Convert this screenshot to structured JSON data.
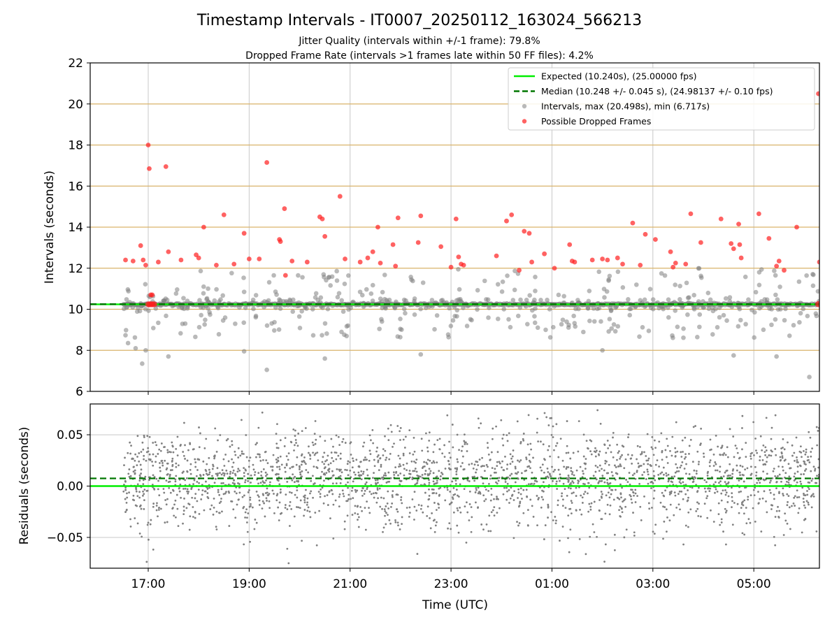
{
  "chart_data": [
    {
      "type": "scatter",
      "panel": "top",
      "title": "Timestamp Intervals - IT0007_20250112_163024_566213",
      "subtitle_lines": [
        "Jitter Quality (intervals within +/-1 frame): 79.8%",
        "Dropped Frame Rate (intervals >1 frames late within 50 FF files): 4.2%"
      ],
      "ylabel": "Intervals (seconds)",
      "xlabel": "",
      "xlim": [
        15.85,
        30.3
      ],
      "ylim": [
        6,
        22
      ],
      "yticks": [
        6,
        8,
        10,
        12,
        14,
        16,
        18,
        20,
        22
      ],
      "grid": true,
      "gold_gridlines": [
        8,
        10,
        12,
        14,
        16,
        18,
        20
      ],
      "legend_position": "upper right",
      "legend": [
        {
          "label": "Expected (10.240s), (25.00000 fps)",
          "kind": "solid-line",
          "color": "#00ee00"
        },
        {
          "label": "Median (10.248 +/- 0.045 s), (24.98137 +/- 0.10 fps)",
          "kind": "dashed-line",
          "color": "#007700"
        },
        {
          "label": "Intervals, max (20.498s), min (6.717s)",
          "kind": "marker",
          "color": "#808080"
        },
        {
          "label": "Possible Dropped Frames",
          "kind": "marker",
          "color": "#ff2020"
        }
      ],
      "expected_interval": 10.24,
      "median_interval": 10.248,
      "time_range_hours": [
        16.51,
        30.3
      ],
      "dense_band": {
        "y": 10.24,
        "description": "continuous band of intervals at expected value"
      },
      "dropped_frame_points": [
        [
          16.55,
          12.4
        ],
        [
          16.7,
          12.35
        ],
        [
          16.85,
          13.1
        ],
        [
          16.9,
          12.4
        ],
        [
          16.95,
          12.15
        ],
        [
          17.0,
          18.0
        ],
        [
          17.02,
          16.85
        ],
        [
          17.05,
          10.7
        ],
        [
          17.08,
          10.7
        ],
        [
          17.2,
          12.3
        ],
        [
          17.35,
          16.95
        ],
        [
          17.4,
          12.8
        ],
        [
          17.65,
          12.4
        ],
        [
          17.95,
          12.65
        ],
        [
          18.0,
          12.5
        ],
        [
          18.1,
          14.0
        ],
        [
          18.35,
          12.15
        ],
        [
          18.5,
          14.6
        ],
        [
          18.7,
          12.2
        ],
        [
          18.9,
          13.7
        ],
        [
          19.0,
          12.45
        ],
        [
          19.2,
          12.45
        ],
        [
          19.35,
          17.15
        ],
        [
          19.6,
          13.4
        ],
        [
          19.62,
          13.3
        ],
        [
          19.7,
          14.9
        ],
        [
          19.72,
          11.65
        ],
        [
          19.85,
          12.35
        ],
        [
          20.15,
          12.3
        ],
        [
          20.4,
          14.5
        ],
        [
          20.45,
          14.4
        ],
        [
          20.5,
          13.55
        ],
        [
          20.8,
          15.5
        ],
        [
          20.9,
          12.45
        ],
        [
          21.2,
          12.3
        ],
        [
          21.35,
          12.5
        ],
        [
          21.45,
          12.8
        ],
        [
          21.55,
          14.0
        ],
        [
          21.6,
          12.25
        ],
        [
          21.85,
          13.15
        ],
        [
          21.9,
          12.1
        ],
        [
          21.95,
          14.45
        ],
        [
          22.35,
          13.25
        ],
        [
          22.4,
          14.55
        ],
        [
          22.8,
          13.05
        ],
        [
          23.0,
          12.05
        ],
        [
          23.1,
          14.4
        ],
        [
          23.15,
          12.55
        ],
        [
          23.2,
          12.2
        ],
        [
          23.25,
          12.15
        ],
        [
          23.9,
          12.6
        ],
        [
          24.1,
          14.3
        ],
        [
          24.2,
          14.6
        ],
        [
          24.35,
          11.9
        ],
        [
          24.45,
          13.8
        ],
        [
          24.55,
          13.7
        ],
        [
          24.6,
          12.3
        ],
        [
          24.85,
          12.7
        ],
        [
          25.05,
          12.0
        ],
        [
          25.35,
          13.15
        ],
        [
          25.4,
          12.35
        ],
        [
          25.45,
          12.3
        ],
        [
          25.8,
          12.4
        ],
        [
          26.0,
          12.45
        ],
        [
          26.1,
          12.4
        ],
        [
          26.3,
          12.5
        ],
        [
          26.4,
          12.2
        ],
        [
          26.6,
          14.2
        ],
        [
          26.75,
          12.15
        ],
        [
          26.85,
          13.65
        ],
        [
          27.05,
          13.4
        ],
        [
          27.35,
          12.8
        ],
        [
          27.4,
          12.05
        ],
        [
          27.45,
          12.25
        ],
        [
          27.65,
          12.2
        ],
        [
          27.75,
          14.65
        ],
        [
          27.95,
          13.25
        ],
        [
          28.35,
          14.4
        ],
        [
          28.55,
          13.2
        ],
        [
          28.6,
          12.95
        ],
        [
          28.7,
          14.15
        ],
        [
          28.72,
          13.15
        ],
        [
          28.75,
          12.5
        ],
        [
          29.1,
          14.65
        ],
        [
          29.3,
          13.45
        ],
        [
          29.45,
          12.1
        ],
        [
          29.5,
          12.35
        ],
        [
          29.6,
          11.9
        ],
        [
          29.85,
          14.0
        ],
        [
          30.28,
          20.5
        ],
        [
          30.3,
          12.3
        ]
      ]
    },
    {
      "type": "scatter",
      "panel": "bottom",
      "xlabel": "Time (UTC)",
      "ylabel": "Residuals (seconds)",
      "xlim": [
        15.85,
        30.3
      ],
      "ylim": [
        -0.08,
        0.08
      ],
      "yticks": [
        -0.05,
        0.0,
        0.05
      ],
      "ytick_labels": [
        "−0.05",
        "0.00",
        "0.05"
      ],
      "xticks": [
        17,
        19,
        21,
        23,
        25,
        27,
        29
      ],
      "xtick_labels": [
        "17:00",
        "19:00",
        "21:00",
        "23:00",
        "01:00",
        "03:00",
        "05:00"
      ],
      "grid": true,
      "expected_residual": 0.0,
      "median_residual": 0.0075,
      "residual_spread": {
        "mean": 0.006,
        "std": 0.024,
        "range": [
          -0.08,
          0.08
        ]
      }
    }
  ],
  "colors": {
    "expected": "#00ee00",
    "median": "#007700",
    "intervals": "#808080",
    "dropped": "#ff2020",
    "gold_grid": "#d9b36a",
    "grid": "#c8c8c8"
  }
}
